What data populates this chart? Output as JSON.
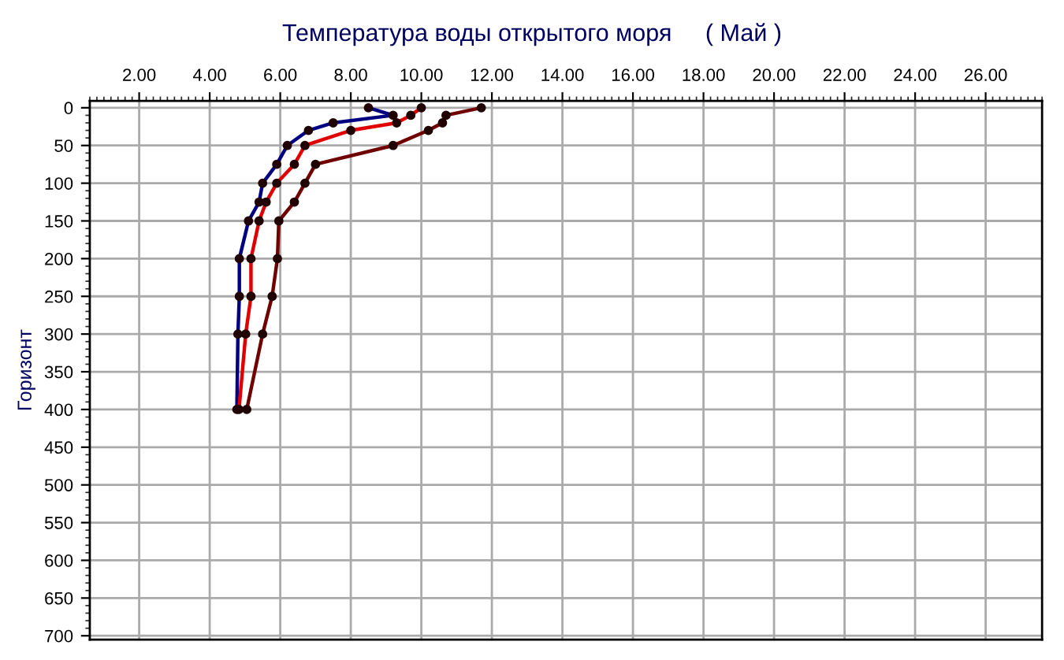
{
  "chart_data": {
    "type": "line",
    "title": "Температура воды открытого моря     ( Май )",
    "ylabel": "Горизонт",
    "xlim": [
      0.6,
      27.6
    ],
    "ylim": [
      705,
      -9
    ],
    "xticks": [
      {
        "value": 2,
        "label": "2.00"
      },
      {
        "value": 4,
        "label": "4.00"
      },
      {
        "value": 6,
        "label": "6.00"
      },
      {
        "value": 8,
        "label": "8.00"
      },
      {
        "value": 10,
        "label": "10.00"
      },
      {
        "value": 12,
        "label": "12.00"
      },
      {
        "value": 14,
        "label": "14.00"
      },
      {
        "value": 16,
        "label": "16.00"
      },
      {
        "value": 18,
        "label": "18.00"
      },
      {
        "value": 20,
        "label": "20.00"
      },
      {
        "value": 22,
        "label": "22.00"
      },
      {
        "value": 24,
        "label": "24.00"
      },
      {
        "value": 26,
        "label": "26.00"
      }
    ],
    "yticks": [
      0,
      50,
      100,
      150,
      200,
      250,
      300,
      350,
      400,
      450,
      500,
      550,
      600,
      650,
      700
    ],
    "grid": true,
    "marker": "circle",
    "line_style": "solid",
    "series": [
      {
        "color": "#000080",
        "x": [
          8.5,
          9.2,
          7.5,
          6.8,
          6.2,
          5.9,
          5.5,
          5.4,
          5.1,
          4.84,
          4.84,
          4.8,
          4.77
        ],
        "values": [
          0,
          10,
          20,
          30,
          50,
          75,
          100,
          125,
          150,
          200,
          250,
          300,
          400
        ]
      },
      {
        "color": "#e00000",
        "x": [
          10.0,
          9.7,
          9.3,
          8.0,
          6.7,
          6.4,
          5.9,
          5.6,
          5.4,
          5.17,
          5.17,
          5.02,
          4.83
        ],
        "values": [
          0,
          10,
          20,
          30,
          50,
          75,
          100,
          125,
          150,
          200,
          250,
          300,
          400
        ]
      },
      {
        "color": "#700000",
        "x": [
          11.7,
          10.7,
          10.6,
          10.2,
          9.2,
          7.0,
          6.7,
          6.4,
          5.96,
          5.92,
          5.77,
          5.5,
          5.05
        ],
        "values": [
          0,
          10,
          20,
          30,
          50,
          75,
          100,
          125,
          150,
          200,
          250,
          300,
          400
        ]
      }
    ]
  }
}
